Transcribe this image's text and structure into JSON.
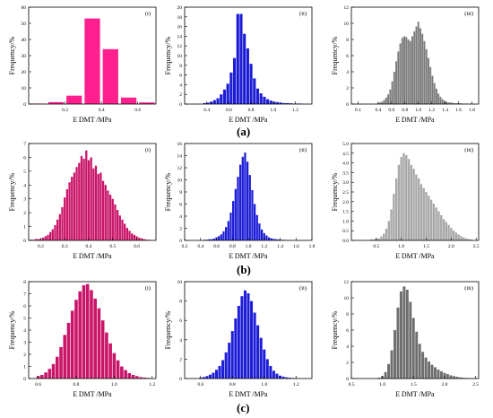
{
  "figure": {
    "group_labels": [
      "(a)",
      "(b)",
      "(c)"
    ]
  },
  "chart_data": [
    {
      "id": "a-i",
      "type": "bar",
      "panel_tag": "(i)",
      "color": "#ff1f8e",
      "ylabel": "Frequency/%",
      "xlabel": "E DMT /MPa",
      "xlim": [
        0,
        0.7
      ],
      "ylim": [
        0,
        60
      ],
      "xticks": [
        "0.2",
        "0.4",
        "0.6"
      ],
      "xtick_values": [
        0.2,
        0.4,
        0.6
      ],
      "yticks": [
        "0",
        "10",
        "20",
        "30",
        "40",
        "50",
        "60"
      ],
      "ytick_values": [
        0,
        10,
        20,
        30,
        40,
        50,
        60
      ],
      "x": [
        0.05,
        0.15,
        0.25,
        0.35,
        0.45,
        0.55,
        0.65
      ],
      "values": [
        0.3,
        1.2,
        5.2,
        53,
        34,
        4,
        1
      ]
    },
    {
      "id": "a-ii",
      "type": "bar",
      "panel_tag": "(ii)",
      "color": "#1d1dd6",
      "ylabel": "Frequency/%",
      "xlabel": "E DMT /MPa",
      "xlim": [
        0.2,
        1.35
      ],
      "ylim": [
        0,
        20
      ],
      "xticks": [
        "0.4",
        "0.6",
        "0.8",
        "1.0",
        "1.2"
      ],
      "xtick_values": [
        0.4,
        0.6,
        0.8,
        1.0,
        1.2
      ],
      "yticks": [
        "0",
        "2",
        "4",
        "6",
        "8",
        "10",
        "12",
        "14",
        "16",
        "18",
        "20"
      ],
      "ytick_values": [
        0,
        2,
        4,
        6,
        8,
        10,
        12,
        14,
        16,
        18,
        20
      ],
      "x": [
        0.38,
        0.41,
        0.44,
        0.47,
        0.5,
        0.53,
        0.56,
        0.59,
        0.62,
        0.65,
        0.68,
        0.71,
        0.74,
        0.77,
        0.8,
        0.83,
        0.86,
        0.89,
        0.92,
        0.95,
        0.98,
        1.01,
        1.04,
        1.07,
        1.1,
        1.13,
        1.16,
        1.19,
        1.22,
        1.25
      ],
      "values": [
        0.2,
        0.3,
        0.5,
        0.8,
        1.2,
        2,
        3,
        4.2,
        6.5,
        9.5,
        18.6,
        18.6,
        14.5,
        11.5,
        8.3,
        5.3,
        3.2,
        2.2,
        1.5,
        1,
        0.7,
        0.5,
        0.4,
        0.3,
        0.2,
        0.2,
        0.15,
        0.1,
        0.1,
        0.1
      ]
    },
    {
      "id": "a-iii",
      "type": "bar",
      "panel_tag": "(iii)",
      "color": "#7a7a7a",
      "ylabel": "Frequency/%",
      "xlabel": "E DMT /MPa",
      "xlim": [
        0,
        1.9
      ],
      "ylim": [
        0,
        12
      ],
      "xticks": [
        "0.1",
        "0.4",
        "0.6",
        "0.8",
        "1.0",
        "1.2",
        "1.4",
        "1.6",
        "1.8"
      ],
      "xtick_values": [
        0.1,
        0.4,
        0.6,
        0.8,
        1.0,
        1.2,
        1.4,
        1.6,
        1.8
      ],
      "yticks": [
        "0",
        "2",
        "4",
        "6",
        "8",
        "10",
        "12"
      ],
      "ytick_values": [
        0,
        2,
        4,
        6,
        8,
        10,
        12
      ],
      "x": [
        0.4,
        0.43,
        0.46,
        0.49,
        0.52,
        0.55,
        0.58,
        0.61,
        0.64,
        0.67,
        0.7,
        0.73,
        0.76,
        0.79,
        0.82,
        0.85,
        0.88,
        0.91,
        0.94,
        0.97,
        1.0,
        1.03,
        1.06,
        1.09,
        1.12,
        1.15,
        1.18,
        1.21,
        1.24,
        1.27,
        1.3,
        1.33,
        1.36,
        1.39,
        1.42,
        1.45,
        1.48,
        1.51,
        1.54,
        1.57,
        1.6,
        1.63,
        1.66,
        1.69,
        1.72,
        1.75,
        1.78
      ],
      "values": [
        0.1,
        0.2,
        0.3,
        0.5,
        0.8,
        1.2,
        1.8,
        2.8,
        4,
        5.3,
        6.5,
        7.5,
        8.2,
        8.4,
        8.3,
        8,
        7.8,
        8.4,
        9,
        9.6,
        10.2,
        9.4,
        8.7,
        7.8,
        6.8,
        5.7,
        4.6,
        3.5,
        2.6,
        1.9,
        1.3,
        0.9,
        0.6,
        0.4,
        0.3,
        0.2,
        0.2,
        0.15,
        0.1,
        0.1,
        0.1,
        0.1,
        0.05,
        0.05,
        0.05,
        0.05,
        0.05
      ]
    },
    {
      "id": "b-i",
      "type": "bar",
      "panel_tag": "(i)",
      "color": "#c9166a",
      "ylabel": "Frequency/%",
      "xlabel": "E DMT /MPa",
      "xlim": [
        0.15,
        0.68
      ],
      "ylim": [
        0,
        7
      ],
      "xticks": [
        "0.2",
        "0.3",
        "0.4",
        "0.5",
        "0.6"
      ],
      "xtick_values": [
        0.2,
        0.3,
        0.4,
        0.5,
        0.6
      ],
      "yticks": [
        "0",
        "1",
        "2",
        "3",
        "4",
        "5",
        "6",
        "7"
      ],
      "ytick_values": [
        0,
        1,
        2,
        3,
        4,
        5,
        6,
        7
      ],
      "x": [
        0.16,
        0.17,
        0.18,
        0.19,
        0.2,
        0.21,
        0.22,
        0.23,
        0.24,
        0.25,
        0.26,
        0.27,
        0.28,
        0.29,
        0.3,
        0.31,
        0.32,
        0.33,
        0.34,
        0.35,
        0.36,
        0.37,
        0.38,
        0.39,
        0.4,
        0.41,
        0.42,
        0.43,
        0.44,
        0.45,
        0.46,
        0.47,
        0.48,
        0.49,
        0.5,
        0.51,
        0.52,
        0.53,
        0.54,
        0.55,
        0.56,
        0.57,
        0.58,
        0.59,
        0.6,
        0.61,
        0.62,
        0.63,
        0.64,
        0.65
      ],
      "values": [
        0.05,
        0.05,
        0.1,
        0.1,
        0.1,
        0.2,
        0.3,
        0.4,
        0.6,
        0.8,
        1.1,
        1.5,
        1.9,
        2.4,
        3.1,
        3.7,
        4.2,
        4.6,
        4.9,
        5.3,
        5.6,
        6.1,
        5.9,
        6.5,
        5.8,
        6.0,
        5.2,
        5.4,
        4.8,
        4.9,
        4.3,
        4.0,
        3.6,
        3.3,
        3.0,
        2.6,
        2.2,
        1.8,
        1.5,
        1.2,
        0.9,
        0.7,
        0.5,
        0.4,
        0.3,
        0.2,
        0.15,
        0.1,
        0.05,
        0.05
      ]
    },
    {
      "id": "b-ii",
      "type": "bar",
      "panel_tag": "(ii)",
      "color": "#1d1dd6",
      "ylabel": "Frequency/%",
      "xlabel": "E DMT /MPa",
      "xlim": [
        0.2,
        1.8
      ],
      "ylim": [
        0,
        16
      ],
      "xticks": [
        "0.2",
        "0.4",
        "0.6",
        "0.8",
        "1.0",
        "1.2",
        "1.4",
        "1.6",
        "1.8"
      ],
      "xtick_values": [
        0.2,
        0.4,
        0.6,
        0.8,
        1.0,
        1.2,
        1.4,
        1.6,
        1.8
      ],
      "yticks": [
        "0",
        "2",
        "4",
        "6",
        "8",
        "10",
        "12",
        "14",
        "16"
      ],
      "ytick_values": [
        0,
        2,
        4,
        6,
        8,
        10,
        12,
        14,
        16
      ],
      "x": [
        0.45,
        0.48,
        0.51,
        0.54,
        0.57,
        0.6,
        0.63,
        0.66,
        0.69,
        0.72,
        0.75,
        0.78,
        0.81,
        0.84,
        0.87,
        0.9,
        0.93,
        0.96,
        0.99,
        1.02,
        1.05,
        1.08,
        1.11,
        1.14,
        1.17,
        1.2,
        1.23,
        1.26,
        1.29,
        1.32,
        1.35,
        1.38,
        1.41,
        1.44,
        1.47,
        1.5
      ],
      "values": [
        0.1,
        0.1,
        0.2,
        0.2,
        0.3,
        0.5,
        0.7,
        1,
        1.5,
        2.2,
        3.2,
        4.6,
        6.5,
        8.5,
        10.5,
        12.5,
        13.8,
        14.5,
        13,
        10.8,
        8.3,
        6,
        4.2,
        2.8,
        1.8,
        1.2,
        0.8,
        0.5,
        0.35,
        0.25,
        0.2,
        0.15,
        0.1,
        0.1,
        0.05,
        0.05
      ]
    },
    {
      "id": "b-iii",
      "type": "bar",
      "panel_tag": "(iii)",
      "color": "#a8a8a8",
      "ylabel": "Frequency/%",
      "xlabel": "E DMT /MPa",
      "xlim": [
        0,
        2.55
      ],
      "ylim": [
        0,
        5
      ],
      "xticks": [
        "0.5",
        "1.0",
        "1.5",
        "2.0",
        "2.5"
      ],
      "xtick_values": [
        0.5,
        1.0,
        1.5,
        2.0,
        2.5
      ],
      "yticks": [
        "0.0",
        "0.5",
        "1.0",
        "1.5",
        "2.0",
        "2.5",
        "3.0",
        "3.5",
        "4.0",
        "4.5",
        "5.0"
      ],
      "ytick_values": [
        0,
        0.5,
        1,
        1.5,
        2,
        2.5,
        3,
        3.5,
        4,
        4.5,
        5
      ],
      "x": [
        0.4,
        0.45,
        0.5,
        0.55,
        0.6,
        0.65,
        0.7,
        0.75,
        0.8,
        0.85,
        0.9,
        0.95,
        1.0,
        1.05,
        1.1,
        1.15,
        1.2,
        1.25,
        1.3,
        1.35,
        1.4,
        1.45,
        1.5,
        1.55,
        1.6,
        1.65,
        1.7,
        1.75,
        1.8,
        1.85,
        1.9,
        1.95,
        2.0,
        2.05,
        2.1,
        2.15,
        2.2,
        2.25,
        2.3,
        2.35,
        2.4
      ],
      "values": [
        0.05,
        0.05,
        0.1,
        0.1,
        0.2,
        0.35,
        0.6,
        1.0,
        1.6,
        2.4,
        3.2,
        3.9,
        4.3,
        4.5,
        4.4,
        4.2,
        3.9,
        3.7,
        3.4,
        3.2,
        2.9,
        2.7,
        2.5,
        2.3,
        2.1,
        1.9,
        1.7,
        1.5,
        1.3,
        1.1,
        0.95,
        0.8,
        0.65,
        0.5,
        0.4,
        0.3,
        0.22,
        0.15,
        0.1,
        0.07,
        0.05
      ]
    },
    {
      "id": "c-i",
      "type": "bar",
      "panel_tag": "(i)",
      "color": "#c9166a",
      "ylabel": "Frequency/%",
      "xlabel": "E DMT /MPa",
      "xlim": [
        0.55,
        1.22
      ],
      "ylim": [
        0,
        8
      ],
      "xticks": [
        "0.6",
        "0.8",
        "1.0",
        "1.2"
      ],
      "xtick_values": [
        0.6,
        0.8,
        1.0,
        1.2
      ],
      "yticks": [
        "0",
        "1",
        "2",
        "3",
        "4",
        "5",
        "6",
        "7",
        "8"
      ],
      "ytick_values": [
        0,
        1,
        2,
        3,
        4,
        5,
        6,
        7,
        8
      ],
      "x": [
        0.6,
        0.62,
        0.64,
        0.66,
        0.68,
        0.7,
        0.72,
        0.74,
        0.76,
        0.78,
        0.8,
        0.82,
        0.84,
        0.86,
        0.88,
        0.9,
        0.92,
        0.94,
        0.96,
        0.98,
        1.0,
        1.02,
        1.04,
        1.06,
        1.08,
        1.1,
        1.12,
        1.14,
        1.16,
        1.18
      ],
      "values": [
        0.2,
        0.3,
        0.5,
        0.8,
        1.2,
        1.8,
        2.6,
        3.6,
        4.6,
        5.6,
        6.5,
        7.2,
        7.7,
        7.8,
        7.3,
        6.6,
        5.8,
        4.8,
        3.8,
        2.9,
        2.1,
        1.5,
        1.0,
        0.7,
        0.45,
        0.3,
        0.2,
        0.12,
        0.08,
        0.05
      ]
    },
    {
      "id": "c-ii",
      "type": "bar",
      "panel_tag": "(ii)",
      "color": "#1d1dd6",
      "ylabel": "Frequency/%",
      "xlabel": "E DMT /MPa",
      "xlim": [
        0.5,
        1.3
      ],
      "ylim": [
        0,
        10
      ],
      "xticks": [
        "0.6",
        "0.8",
        "1.0",
        "1.2"
      ],
      "xtick_values": [
        0.6,
        0.8,
        1.0,
        1.2
      ],
      "yticks": [
        "0",
        "2",
        "4",
        "6",
        "8",
        "10"
      ],
      "ytick_values": [
        0,
        2,
        4,
        6,
        8,
        10
      ],
      "x": [
        0.6,
        0.62,
        0.64,
        0.66,
        0.68,
        0.7,
        0.72,
        0.74,
        0.76,
        0.78,
        0.8,
        0.82,
        0.84,
        0.86,
        0.88,
        0.9,
        0.92,
        0.94,
        0.96,
        0.98,
        1.0,
        1.02,
        1.04,
        1.06,
        1.08,
        1.1,
        1.12,
        1.14,
        1.16,
        1.18,
        1.2
      ],
      "values": [
        0.1,
        0.15,
        0.25,
        0.4,
        0.6,
        0.9,
        1.3,
        1.9,
        2.7,
        3.7,
        4.9,
        6.2,
        7.5,
        8.5,
        9.1,
        8.8,
        8.0,
        6.8,
        5.5,
        4.2,
        3.0,
        2.0,
        1.3,
        0.8,
        0.5,
        0.3,
        0.2,
        0.12,
        0.08,
        0.05,
        0.05
      ]
    },
    {
      "id": "c-iii",
      "type": "bar",
      "panel_tag": "(iii)",
      "color": "#6e6e6e",
      "ylabel": "Frequency/%",
      "xlabel": "E DMT /MPa",
      "xlim": [
        0.5,
        2.55
      ],
      "ylim": [
        0,
        12
      ],
      "xticks": [
        "0.5",
        "1.0",
        "1.5",
        "2.0",
        "2.5"
      ],
      "xtick_values": [
        0.5,
        1.0,
        1.5,
        2.0,
        2.5
      ],
      "yticks": [
        "0",
        "2",
        "4",
        "6",
        "8",
        "10",
        "12"
      ],
      "ytick_values": [
        0,
        2,
        4,
        6,
        8,
        10,
        12
      ],
      "x": [
        0.95,
        1.0,
        1.05,
        1.1,
        1.15,
        1.2,
        1.25,
        1.3,
        1.35,
        1.4,
        1.45,
        1.5,
        1.55,
        1.6,
        1.65,
        1.7,
        1.75,
        1.8,
        1.85,
        1.9,
        1.95,
        2.0,
        2.05,
        2.1,
        2.15,
        2.2,
        2.25,
        2.3,
        2.35,
        2.4,
        2.45
      ],
      "values": [
        0.1,
        0.3,
        0.8,
        1.8,
        3.5,
        6.0,
        8.8,
        10.8,
        11.4,
        11.0,
        9.5,
        7.5,
        5.8,
        4.3,
        3.3,
        2.6,
        2.1,
        1.7,
        1.4,
        1.1,
        0.9,
        0.7,
        0.55,
        0.4,
        0.3,
        0.22,
        0.15,
        0.1,
        0.07,
        0.05,
        0.05
      ]
    }
  ]
}
